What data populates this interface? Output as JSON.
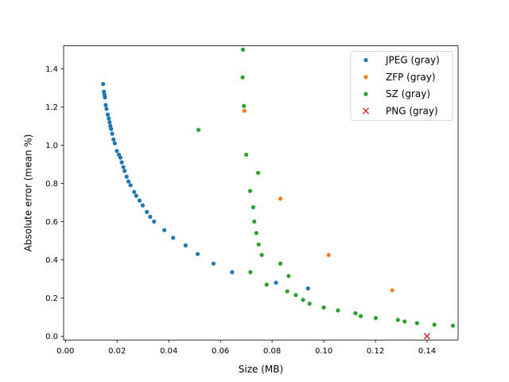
{
  "chart_data": {
    "type": "scatter",
    "title": "",
    "xlabel": "Size (MB)",
    "ylabel": "Absolute error (mean %)",
    "xlim": [
      -0.0007,
      0.152
    ],
    "ylim": [
      -0.02,
      1.52
    ],
    "x_ticks": [
      0.0,
      0.02,
      0.04,
      0.06,
      0.08,
      0.1,
      0.12,
      0.14
    ],
    "x_tick_labels": [
      "0.00",
      "0.02",
      "0.04",
      "0.06",
      "0.08",
      "0.10",
      "0.12",
      "0.14"
    ],
    "y_ticks": [
      0.0,
      0.2,
      0.4,
      0.6,
      0.8,
      1.0,
      1.2,
      1.4
    ],
    "y_tick_labels": [
      "0.0",
      "0.2",
      "0.4",
      "0.6",
      "0.8",
      "1.0",
      "1.2",
      "1.4"
    ],
    "grid": false,
    "legend_position": "top-right",
    "series": [
      {
        "name": "JPEG (gray)",
        "color": "#1f77b4",
        "marker": "dot",
        "points": [
          [
            0.0146,
            1.32
          ],
          [
            0.0149,
            1.28
          ],
          [
            0.0151,
            1.265
          ],
          [
            0.0153,
            1.25
          ],
          [
            0.0156,
            1.21
          ],
          [
            0.0159,
            1.19
          ],
          [
            0.0164,
            1.16
          ],
          [
            0.0168,
            1.14
          ],
          [
            0.0171,
            1.12
          ],
          [
            0.0174,
            1.1
          ],
          [
            0.0177,
            1.085
          ],
          [
            0.0181,
            1.06
          ],
          [
            0.0186,
            1.03
          ],
          [
            0.0191,
            1.01
          ],
          [
            0.0199,
            0.97
          ],
          [
            0.0207,
            0.95
          ],
          [
            0.0213,
            0.935
          ],
          [
            0.0218,
            0.91
          ],
          [
            0.0224,
            0.885
          ],
          [
            0.0229,
            0.865
          ],
          [
            0.0237,
            0.835
          ],
          [
            0.0244,
            0.81
          ],
          [
            0.0252,
            0.79
          ],
          [
            0.0266,
            0.755
          ],
          [
            0.0274,
            0.735
          ],
          [
            0.0287,
            0.71
          ],
          [
            0.0299,
            0.685
          ],
          [
            0.0315,
            0.65
          ],
          [
            0.0328,
            0.625
          ],
          [
            0.0343,
            0.6
          ],
          [
            0.0383,
            0.555
          ],
          [
            0.0417,
            0.515
          ],
          [
            0.0465,
            0.475
          ],
          [
            0.0512,
            0.43
          ],
          [
            0.0573,
            0.38
          ],
          [
            0.0645,
            0.335
          ],
          [
            0.0815,
            0.28
          ],
          [
            0.0939,
            0.25
          ]
        ]
      },
      {
        "name": "ZFP (gray)",
        "color": "#ff7f0e",
        "marker": "dot",
        "points": [
          [
            0.0693,
            1.18
          ],
          [
            0.0832,
            0.72
          ],
          [
            0.1019,
            0.425
          ],
          [
            0.1265,
            0.24
          ]
        ]
      },
      {
        "name": "SZ (gray)",
        "color": "#2ca02c",
        "marker": "dot",
        "points": [
          [
            0.0687,
            1.5
          ],
          [
            0.0686,
            1.355
          ],
          [
            0.0691,
            1.205
          ],
          [
            0.0515,
            1.08
          ],
          [
            0.07,
            0.95
          ],
          [
            0.0746,
            0.855
          ],
          [
            0.0715,
            0.76
          ],
          [
            0.0727,
            0.675
          ],
          [
            0.0731,
            0.6
          ],
          [
            0.0739,
            0.54
          ],
          [
            0.0748,
            0.48
          ],
          [
            0.076,
            0.425
          ],
          [
            0.0716,
            0.335
          ],
          [
            0.0832,
            0.38
          ],
          [
            0.0864,
            0.315
          ],
          [
            0.0779,
            0.27
          ],
          [
            0.0859,
            0.235
          ],
          [
            0.0892,
            0.215
          ],
          [
            0.092,
            0.19
          ],
          [
            0.0945,
            0.17
          ],
          [
            0.1,
            0.15
          ],
          [
            0.1055,
            0.135
          ],
          [
            0.1123,
            0.12
          ],
          [
            0.1143,
            0.105
          ],
          [
            0.1201,
            0.095
          ],
          [
            0.1287,
            0.085
          ],
          [
            0.1313,
            0.077
          ],
          [
            0.1361,
            0.068
          ],
          [
            0.1428,
            0.06
          ],
          [
            0.15,
            0.055
          ]
        ]
      },
      {
        "name": "PNG (gray)",
        "color": "#d62728",
        "marker": "x",
        "points": [
          [
            0.14,
            0.0
          ]
        ]
      }
    ]
  }
}
